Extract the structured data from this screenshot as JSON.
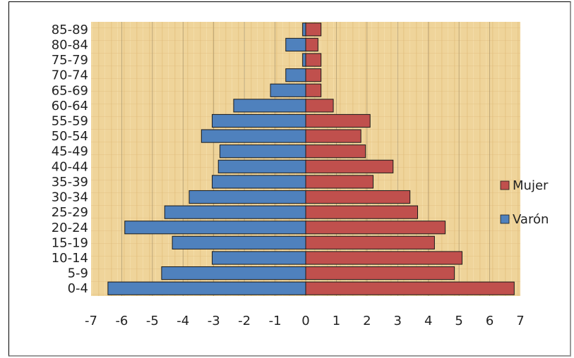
{
  "chart_data": {
    "type": "bar",
    "orientation": "horizontal",
    "subtype": "population-pyramid",
    "categories": [
      "0-4",
      "5-9",
      "10-14",
      "15-19",
      "20-24",
      "25-29",
      "30-34",
      "35-39",
      "40-44",
      "45-49",
      "50-54",
      "55-59",
      "60-64",
      "65-69",
      "70-74",
      "75-79",
      "80-84",
      "85-89"
    ],
    "series": [
      {
        "name": "Mujer",
        "color": "#C0504D",
        "values": [
          6.8,
          4.85,
          5.1,
          4.2,
          4.55,
          3.65,
          3.4,
          2.2,
          2.85,
          1.95,
          1.8,
          2.1,
          0.9,
          0.5,
          0.5,
          0.5,
          0.4,
          0.5
        ]
      },
      {
        "name": "Varón",
        "color": "#4F81BD",
        "values": [
          -6.45,
          -4.7,
          -3.05,
          -4.35,
          -5.9,
          -4.6,
          -3.8,
          -3.05,
          -2.85,
          -2.8,
          -3.4,
          -3.05,
          -2.35,
          -1.15,
          -0.65,
          -0.1,
          -0.65,
          -0.1
        ]
      }
    ],
    "x_ticks": [
      -7,
      -6,
      -5,
      -4,
      -3,
      -2,
      -1,
      0,
      1,
      2,
      3,
      4,
      5,
      6,
      7
    ],
    "xlim": [
      -7,
      7
    ],
    "title": "",
    "xlabel": "",
    "ylabel": "",
    "grid": "vertical",
    "legend_position": "right",
    "plot_background": "#EFD49A"
  }
}
